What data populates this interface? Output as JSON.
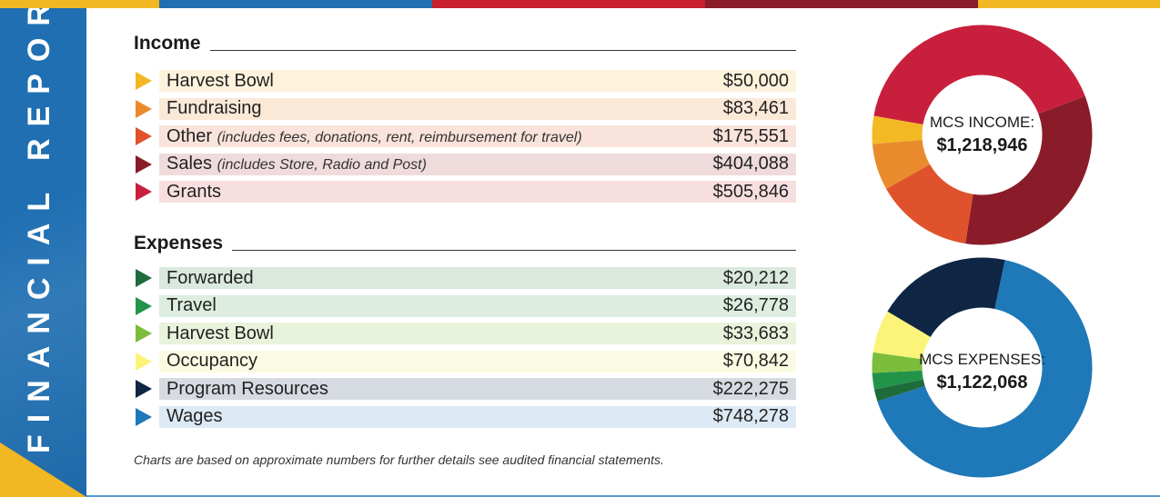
{
  "banner": {
    "title": "FINANCIAL REPORT"
  },
  "colors": {
    "stripe": [
      "#f2b824",
      "#1f6fb2",
      "#c8202f",
      "#8a1c2a",
      "#f2b824"
    ],
    "banner": "#1f6fb2",
    "banner_accent": "#f2b824"
  },
  "income": {
    "heading": "Income",
    "items": [
      {
        "name": "Harvest Bowl",
        "note": "",
        "amount": "$50,000",
        "color": "#f4b824",
        "bg": "#fdf3dc"
      },
      {
        "name": "Fundraising",
        "note": "",
        "amount": "$83,461",
        "color": "#e98b2c",
        "bg": "#fbe9d8"
      },
      {
        "name": "Other ",
        "note": "(includes fees, donations, rent, reimbursement for travel)",
        "amount": "$175,551",
        "color": "#e0522c",
        "bg": "#f9e3da"
      },
      {
        "name": "Sales ",
        "note": "(includes Store, Radio and Post)",
        "amount": "$404,088",
        "color": "#8a1c2a",
        "bg": "#efdbdb"
      },
      {
        "name": "Grants",
        "note": "",
        "amount": "$505,846",
        "color": "#c8203c",
        "bg": "#f7dfe0"
      }
    ]
  },
  "expenses": {
    "heading": "Expenses",
    "items": [
      {
        "name": "Forwarded",
        "note": "",
        "amount": "$20,212",
        "color": "#1e6b3c",
        "bg": "#dbe8de"
      },
      {
        "name": "Travel",
        "note": "",
        "amount": "$26,778",
        "color": "#22944a",
        "bg": "#ddeee0"
      },
      {
        "name": "Harvest Bowl",
        "note": "",
        "amount": "$33,683",
        "color": "#7cbd3c",
        "bg": "#e9f3dc"
      },
      {
        "name": "Occupancy",
        "note": "",
        "amount": "$70,842",
        "color": "#fcf47a",
        "bg": "#fbfbe3"
      },
      {
        "name": "Program Resources",
        "note": "",
        "amount": "$222,275",
        "color": "#0f2544",
        "bg": "#d6dbe2"
      },
      {
        "name": "Wages",
        "note": "",
        "amount": "$748,278",
        "color": "#1f78b8",
        "bg": "#dde9f4"
      }
    ]
  },
  "footnote": "Charts are based on approximate numbers for further details see audited financial statements.",
  "chart_data": [
    {
      "type": "pie",
      "title": "MCS INCOME:",
      "total_label": "$1,218,946",
      "start_angle_deg": -170,
      "categories": [
        "Grants",
        "Sales",
        "Other",
        "Fundraising",
        "Harvest Bowl"
      ],
      "values": [
        505846,
        404088,
        175551,
        83461,
        50000
      ],
      "colors": [
        "#c8203c",
        "#8a1c2a",
        "#e0522c",
        "#e98b2c",
        "#f4b824"
      ]
    },
    {
      "type": "pie",
      "title": "MCS EXPENSES:",
      "total_label": "$1,122,068",
      "start_angle_deg": -78,
      "categories": [
        "Wages",
        "Forwarded",
        "Travel",
        "Harvest Bowl",
        "Occupancy",
        "Program Resources"
      ],
      "values": [
        748278,
        20212,
        26778,
        33683,
        70842,
        222275
      ],
      "colors": [
        "#1f78b8",
        "#1e6b3c",
        "#22944a",
        "#7cbd3c",
        "#fcf47a",
        "#0f2544"
      ]
    }
  ]
}
